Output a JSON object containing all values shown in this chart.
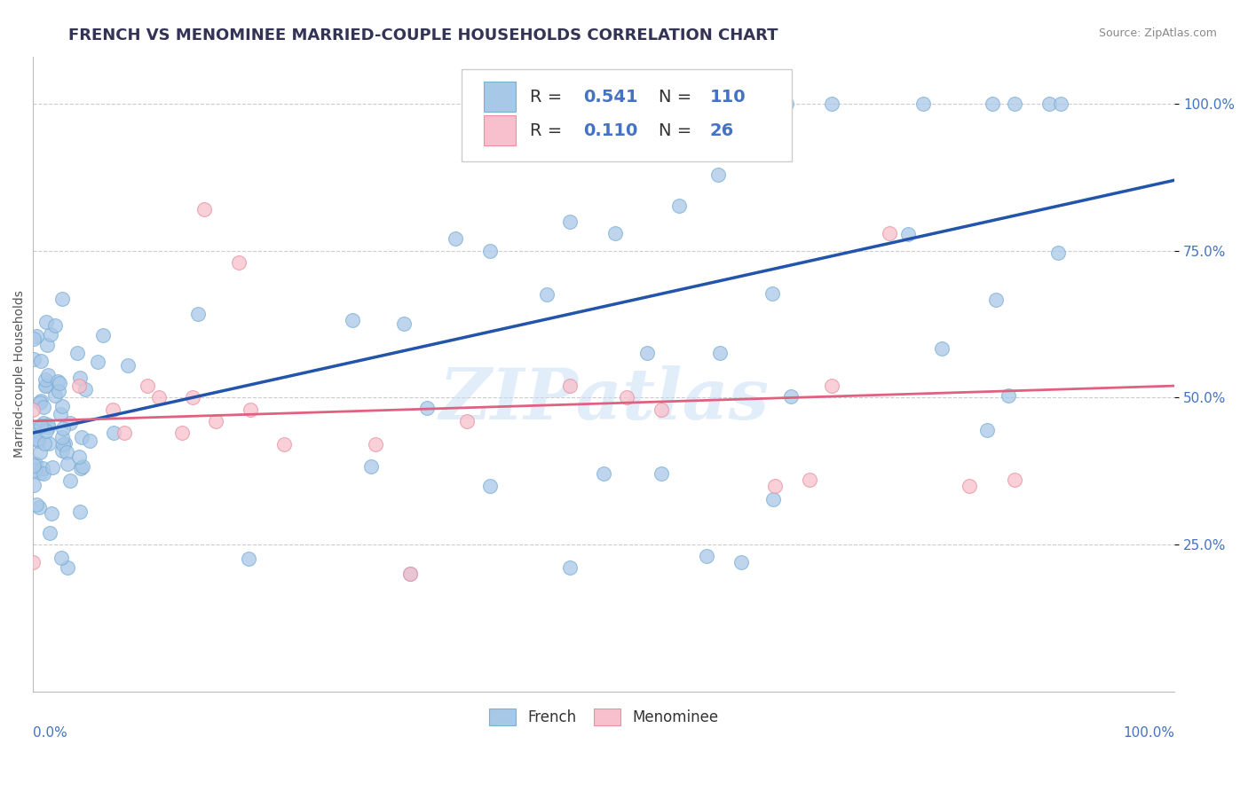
{
  "title": "FRENCH VS MENOMINEE MARRIED-COUPLE HOUSEHOLDS CORRELATION CHART",
  "source": "Source: ZipAtlas.com",
  "ylabel": "Married-couple Households",
  "french_R": 0.541,
  "french_N": 110,
  "menominee_R": 0.11,
  "menominee_N": 26,
  "french_color": "#a8c8e8",
  "french_edge_color": "#7bafd4",
  "french_line_color": "#2255aa",
  "menominee_color": "#f8c0cc",
  "menominee_edge_color": "#e890a0",
  "menominee_line_color": "#e06080",
  "background_color": "#ffffff",
  "grid_color": "#cccccc",
  "watermark": "ZIPatlas",
  "title_color": "#333355",
  "title_fontsize": 13,
  "axis_label_fontsize": 10,
  "tick_fontsize": 11,
  "legend_fontsize": 14,
  "source_fontsize": 9,
  "seed": 7
}
